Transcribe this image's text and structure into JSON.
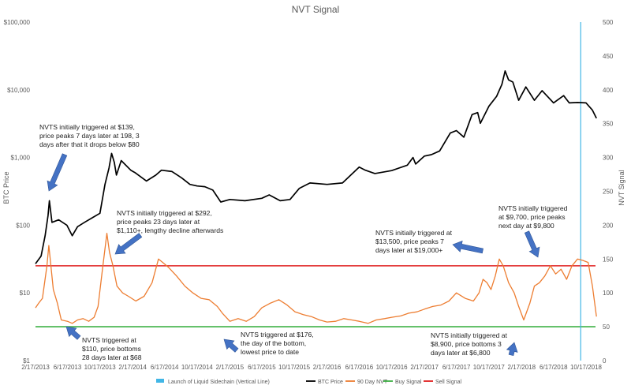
{
  "chart_data": {
    "type": "line",
    "title": "NVT Signal",
    "ylabel_left": "BTC Price",
    "ylabel_right": "NVT Signal",
    "y_left_scale": "log",
    "y_left_range": [
      1,
      100000
    ],
    "y_left_ticks": [
      "$1",
      "$10",
      "$100",
      "$1,000",
      "$10,000",
      "$100,000"
    ],
    "y_right_range": [
      0,
      500
    ],
    "y_right_ticks": [
      "0",
      "50",
      "100",
      "150",
      "200",
      "250",
      "300",
      "350",
      "400",
      "450",
      "500"
    ],
    "x_range": [
      "2013-02-17",
      "2018-10-17"
    ],
    "x_ticks": [
      "2/17/2013",
      "6/17/2013",
      "10/17/2013",
      "2/17/2014",
      "6/17/2014",
      "10/17/2014",
      "2/17/2015",
      "6/17/2015",
      "10/17/2015",
      "2/17/2016",
      "6/17/2016",
      "10/17/2016",
      "2/17/2017",
      "6/17/2017",
      "10/17/2017",
      "2/17/2018",
      "6/17/2018",
      "10/17/2018"
    ],
    "grid": false,
    "legend_position": "bottom",
    "legend": [
      {
        "name": "Launch of Liquid Sidechain (Vertical Line)",
        "color": "#41b6e6",
        "kind": "box"
      },
      {
        "name": "BTC Price",
        "color": "#000000",
        "kind": "line"
      },
      {
        "name": "90 Day NVT",
        "color": "#ed7d31",
        "kind": "line"
      },
      {
        "name": "Buy Signal",
        "color": "#3cb043",
        "kind": "line"
      },
      {
        "name": "Sell Signal",
        "color": "#e02020",
        "kind": "line"
      }
    ],
    "series": [
      {
        "name": "BTC Price",
        "axis": "left",
        "color": "#000000",
        "x": [
          "2013-02-17",
          "2013-03-10",
          "2013-03-25",
          "2013-04-05",
          "2013-04-10",
          "2013-04-20",
          "2013-05-15",
          "2013-06-15",
          "2013-07-05",
          "2013-07-25",
          "2013-08-20",
          "2013-09-20",
          "2013-10-17",
          "2013-11-05",
          "2013-11-20",
          "2013-11-30",
          "2013-12-10",
          "2013-12-18",
          "2014-01-05",
          "2014-02-10",
          "2014-02-25",
          "2014-04-10",
          "2014-05-15",
          "2014-06-05",
          "2014-07-15",
          "2014-08-20",
          "2014-09-20",
          "2014-10-17",
          "2014-11-15",
          "2014-12-15",
          "2015-01-14",
          "2015-02-17",
          "2015-04-15",
          "2015-06-17",
          "2015-07-15",
          "2015-08-25",
          "2015-10-01",
          "2015-11-05",
          "2015-12-15",
          "2016-02-17",
          "2016-04-15",
          "2016-06-17",
          "2016-07-10",
          "2016-08-15",
          "2016-10-17",
          "2016-12-15",
          "2017-01-05",
          "2017-01-15",
          "2017-02-17",
          "2017-03-15",
          "2017-04-15",
          "2017-05-25",
          "2017-06-17",
          "2017-07-15",
          "2017-08-15",
          "2017-09-05",
          "2017-09-15",
          "2017-10-17",
          "2017-11-15",
          "2017-12-05",
          "2017-12-17",
          "2017-12-30",
          "2018-01-15",
          "2018-02-06",
          "2018-03-05",
          "2018-04-06",
          "2018-05-05",
          "2018-06-17",
          "2018-07-25",
          "2018-08-15",
          "2018-09-15",
          "2018-10-17",
          "2018-11-10",
          "2018-11-25"
        ],
        "values": [
          27,
          35,
          70,
          139,
          230,
          110,
          120,
          100,
          70,
          95,
          110,
          130,
          150,
          400,
          700,
          1150,
          850,
          550,
          900,
          650,
          600,
          450,
          550,
          650,
          620,
          500,
          400,
          380,
          370,
          330,
          220,
          240,
          230,
          250,
          280,
          230,
          240,
          350,
          420,
          400,
          420,
          720,
          650,
          580,
          640,
          770,
          1000,
          800,
          1050,
          1100,
          1250,
          2300,
          2500,
          2000,
          4300,
          4600,
          3200,
          5700,
          8000,
          12000,
          19000,
          14000,
          13000,
          7000,
          11000,
          7000,
          9700,
          6400,
          8200,
          6400,
          6500,
          6400,
          5000,
          3800
        ]
      },
      {
        "name": "90 Day NVT",
        "axis": "right",
        "color": "#ed7d31",
        "x": [
          "2013-02-17",
          "2013-03-01",
          "2013-03-15",
          "2013-04-01",
          "2013-04-08",
          "2013-04-25",
          "2013-05-10",
          "2013-05-25",
          "2013-06-17",
          "2013-07-05",
          "2013-07-25",
          "2013-08-15",
          "2013-09-05",
          "2013-09-25",
          "2013-10-10",
          "2013-10-25",
          "2013-11-12",
          "2013-11-22",
          "2013-12-05",
          "2013-12-20",
          "2014-01-10",
          "2014-02-01",
          "2014-03-01",
          "2014-04-01",
          "2014-05-01",
          "2014-05-25",
          "2014-06-10",
          "2014-07-01",
          "2014-08-01",
          "2014-09-01",
          "2014-10-01",
          "2014-11-01",
          "2014-12-01",
          "2015-01-01",
          "2015-01-20",
          "2015-02-17",
          "2015-03-20",
          "2015-04-20",
          "2015-05-20",
          "2015-06-17",
          "2015-07-20",
          "2015-08-20",
          "2015-09-20",
          "2015-10-20",
          "2015-11-20",
          "2015-12-20",
          "2016-01-20",
          "2016-02-17",
          "2016-03-20",
          "2016-04-20",
          "2016-05-20",
          "2016-06-17",
          "2016-07-20",
          "2016-08-20",
          "2016-09-20",
          "2016-10-17",
          "2016-11-20",
          "2016-12-20",
          "2017-01-20",
          "2017-02-17",
          "2017-03-20",
          "2017-04-20",
          "2017-05-20",
          "2017-06-17",
          "2017-07-20",
          "2017-08-20",
          "2017-09-10",
          "2017-09-25",
          "2017-10-10",
          "2017-10-25",
          "2017-11-10",
          "2017-11-25",
          "2017-12-10",
          "2017-12-30",
          "2018-01-20",
          "2018-02-06",
          "2018-02-25",
          "2018-03-20",
          "2018-04-06",
          "2018-04-25",
          "2018-05-15",
          "2018-06-05",
          "2018-06-25",
          "2018-07-15",
          "2018-08-05",
          "2018-08-25",
          "2018-09-15",
          "2018-10-05",
          "2018-10-25",
          "2018-11-10",
          "2018-11-25"
        ],
        "values": [
          78,
          85,
          92,
          140,
          170,
          105,
          85,
          60,
          58,
          55,
          60,
          62,
          58,
          64,
          80,
          130,
          188,
          160,
          140,
          110,
          100,
          95,
          88,
          95,
          115,
          150,
          145,
          138,
          125,
          110,
          100,
          92,
          90,
          80,
          70,
          58,
          62,
          58,
          65,
          78,
          85,
          90,
          82,
          72,
          68,
          65,
          60,
          57,
          58,
          62,
          60,
          58,
          55,
          60,
          62,
          64,
          66,
          70,
          72,
          76,
          80,
          82,
          88,
          100,
          92,
          88,
          100,
          120,
          115,
          105,
          125,
          150,
          140,
          115,
          100,
          80,
          60,
          85,
          110,
          115,
          125,
          140,
          128,
          135,
          120,
          140,
          150,
          148,
          145,
          110,
          65
        ]
      }
    ],
    "reference_lines": [
      {
        "name": "Sell Signal",
        "axis": "right",
        "value": 140,
        "color": "#e02020"
      },
      {
        "name": "Buy Signal",
        "axis": "right",
        "value": 50,
        "color": "#3cb043"
      },
      {
        "name": "Launch of Liquid Sidechain (Vertical Line)",
        "x": "2018-09-27",
        "color": "#41b6e6"
      }
    ],
    "annotations": [
      {
        "text": [
          "NVTS initially triggered at $139,",
          "price peaks 7 days later at  198, 3",
          "days after that it drops below $80"
        ]
      },
      {
        "text": [
          "NVTS initially triggered at $292,",
          "price peaks 23 days later at",
          "$1,110+, lengthy decline afterwards"
        ]
      },
      {
        "text": [
          "NVTS triggered at",
          "$110, price bottoms",
          "28 days later at $68"
        ]
      },
      {
        "text": [
          "NVTS triggered at $176,",
          "the day of the bottom,",
          "lowest price to date"
        ]
      },
      {
        "text": [
          "NVTS initially triggered at",
          "$13,500, price peaks 7",
          "days later at  $19,000+"
        ]
      },
      {
        "text": [
          "NVTS initially triggered",
          "at $9,700, price peaks",
          "next day at $9,800"
        ]
      },
      {
        "text": [
          "NVTS initially triggered at",
          "$8,900, price bottoms 3",
          "days later at $6,800"
        ]
      }
    ]
  }
}
